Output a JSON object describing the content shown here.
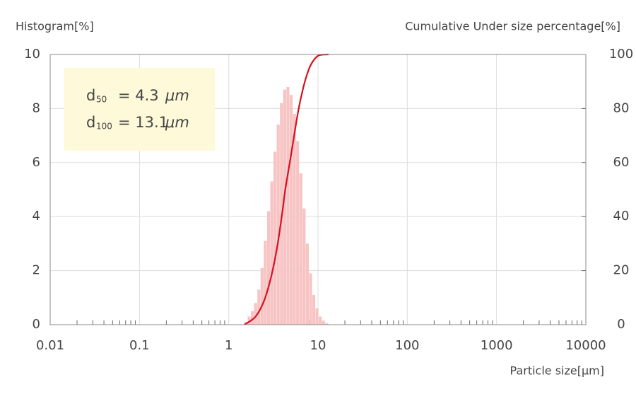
{
  "chart_data": {
    "type": "histogram",
    "y_label": "Histogram[%]",
    "y2_label": "Cumulative Under size percentage[%]",
    "x_label": "Particle size[μm]",
    "xscale": "log",
    "xlim": [
      0.01,
      10000
    ],
    "xticks": [
      0.01,
      0.1,
      1,
      10,
      100,
      1000,
      10000
    ],
    "xminorticks": [
      0.02,
      0.03,
      0.04,
      0.05,
      0.06,
      0.07,
      0.08,
      0.09,
      0.2,
      0.3,
      0.4,
      0.5,
      0.6,
      0.7,
      0.8,
      0.9,
      2,
      3,
      4,
      5,
      6,
      7,
      8,
      9,
      20,
      30,
      40,
      50,
      60,
      70,
      80,
      90,
      200,
      300,
      400,
      500,
      600,
      700,
      800,
      900,
      2000,
      3000,
      4000,
      5000,
      6000,
      7000,
      8000,
      9000
    ],
    "ylim": [
      0,
      10
    ],
    "yticks": [
      0,
      2,
      4,
      6,
      8,
      10
    ],
    "y2lim": [
      0,
      100
    ],
    "y2ticks": [
      0,
      20,
      40,
      60,
      80,
      100
    ],
    "grid": true,
    "bins": [
      1.5,
      1.63,
      1.772,
      1.926,
      2.094,
      2.276,
      2.474,
      2.689,
      2.922,
      3.176,
      3.452,
      3.752,
      4.078,
      4.432,
      4.817,
      5.236,
      5.691,
      6.186,
      6.724,
      7.308,
      7.943,
      8.633,
      9.384,
      10.2,
      11.09,
      12.05,
      13.1
    ],
    "counts": [
      0.1,
      0.3,
      0.5,
      0.8,
      1.3,
      2.1,
      3.1,
      4.2,
      5.3,
      6.4,
      7.4,
      8.2,
      8.7,
      8.8,
      8.5,
      7.8,
      6.8,
      5.6,
      4.3,
      3.0,
      1.9,
      1.1,
      0.6,
      0.3,
      0.15,
      0.05
    ],
    "color": "#f7c3c3",
    "cumulative": {
      "axis": "y2",
      "color": "#d7101e",
      "x": [
        1.5,
        2,
        2.5,
        3,
        3.5,
        4,
        4.3,
        5,
        6,
        7,
        8,
        9,
        10,
        11,
        13.1
      ],
      "values": [
        0,
        3,
        9,
        18,
        29,
        42,
        50,
        63,
        79,
        89,
        95,
        98,
        99.5,
        99.9,
        100
      ]
    },
    "annotations": [
      {
        "symbol": "d",
        "subscript": "50",
        "text": "=  4.3",
        "unit": "μm"
      },
      {
        "symbol": "d",
        "subscript": "100",
        "text": "= 13.1",
        "unit": "μm"
      }
    ],
    "annotation_color": "#fdf9d9"
  }
}
